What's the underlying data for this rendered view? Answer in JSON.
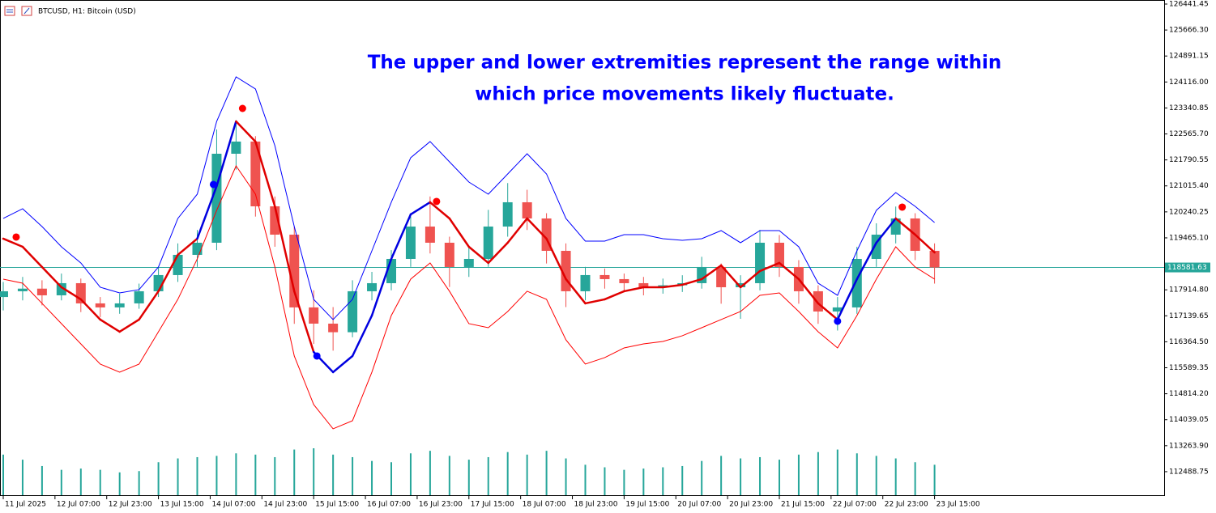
{
  "chart_data": {
    "type": "candlestick",
    "title": "BTCUSD, H1:  Bitcoin (USD)",
    "annotations": [
      "The upper and lower extremities represent the range within",
      "which price movements likely fluctuate."
    ],
    "x": [
      "11 Jul 15:00",
      "11 Jul 21:00",
      "12 Jul 03:00",
      "12 Jul 09:00",
      "12 Jul 15:00",
      "12 Jul 21:00",
      "13 Jul 03:00",
      "13 Jul 09:00",
      "13 Jul 15:00",
      "13 Jul 21:00",
      "14 Jul 03:00",
      "14 Jul 09:00",
      "14 Jul 15:00",
      "14 Jul 21:00",
      "15 Jul 03:00",
      "15 Jul 09:00",
      "15 Jul 15:00",
      "15 Jul 21:00",
      "16 Jul 03:00",
      "16 Jul 09:00",
      "16 Jul 15:00",
      "16 Jul 21:00",
      "17 Jul 03:00",
      "17 Jul 09:00",
      "17 Jul 15:00",
      "17 Jul 21:00",
      "18 Jul 03:00",
      "18 Jul 09:00",
      "18 Jul 15:00",
      "18 Jul 21:00",
      "19 Jul 03:00",
      "19 Jul 09:00",
      "19 Jul 15:00",
      "19 Jul 21:00",
      "20 Jul 03:00",
      "20 Jul 09:00",
      "20 Jul 15:00",
      "20 Jul 21:00",
      "21 Jul 03:00",
      "21 Jul 09:00",
      "21 Jul 15:00",
      "21 Jul 21:00",
      "22 Jul 03:00",
      "22 Jul 09:00",
      "22 Jul 15:00",
      "22 Jul 21:00",
      "23 Jul 03:00",
      "23 Jul 09:00",
      "23 Jul 15:00"
    ],
    "open": [
      117700,
      117872,
      117950,
      117751,
      118113,
      117510,
      117390,
      117510,
      117872,
      118355,
      118958,
      119320,
      121975,
      122338,
      120406,
      119561,
      117390,
      116906,
      116650,
      117872,
      118113,
      118837,
      119803,
      119320,
      118596,
      118837,
      119803,
      120527,
      120044,
      119078,
      117872,
      118355,
      118234,
      118113,
      117992,
      118050,
      118113,
      118596,
      117992,
      118113,
      119320,
      118596,
      117872,
      117268,
      117390,
      118837,
      119561,
      120044,
      119078
    ],
    "high": [
      118150,
      118300,
      118200,
      118400,
      118250,
      117700,
      117800,
      118100,
      118600,
      119300,
      119700,
      122700,
      122900,
      122500,
      120700,
      119800,
      117900,
      117400,
      118200,
      118450,
      119100,
      120100,
      120700,
      119500,
      119200,
      120300,
      121100,
      120900,
      120200,
      119300,
      118600,
      118550,
      118400,
      118300,
      118250,
      118350,
      118900,
      118700,
      118350,
      119700,
      119550,
      118800,
      118050,
      117700,
      119200,
      119900,
      120400,
      120200,
      119300
    ],
    "low": [
      117300,
      117600,
      117450,
      117600,
      117250,
      117100,
      117200,
      117350,
      117700,
      118150,
      118600,
      119100,
      121500,
      120100,
      119200,
      116900,
      116300,
      116100,
      116500,
      117600,
      117900,
      118600,
      119000,
      118000,
      118300,
      118600,
      119500,
      119700,
      118700,
      117400,
      117600,
      117950,
      117850,
      117750,
      117800,
      117850,
      117950,
      117500,
      117050,
      117900,
      118300,
      117500,
      116900,
      116700,
      117200,
      118600,
      119300,
      118800,
      118100
    ],
    "close": [
      117872,
      117950,
      117751,
      118113,
      117510,
      117390,
      117510,
      117872,
      118355,
      118958,
      119320,
      121975,
      122338,
      120406,
      119561,
      117390,
      116906,
      116650,
      117872,
      118113,
      118837,
      119803,
      119320,
      118596,
      118837,
      119803,
      120527,
      120044,
      119078,
      117872,
      118355,
      118234,
      118113,
      117992,
      118050,
      118113,
      118596,
      117992,
      118113,
      119320,
      118596,
      117872,
      117268,
      117390,
      118837,
      119561,
      120044,
      119078,
      118581.63
    ],
    "volume": [
      3200,
      2800,
      2300,
      2000,
      2100,
      2000,
      1800,
      1900,
      2600,
      2900,
      3000,
      3100,
      3300,
      3200,
      3000,
      3600,
      3700,
      3200,
      3000,
      2700,
      2600,
      3300,
      3500,
      3100,
      2800,
      3000,
      3400,
      3200,
      3500,
      2900,
      2400,
      2200,
      2000,
      2100,
      2200,
      2300,
      2700,
      3100,
      2900,
      3000,
      2800,
      3200,
      3400,
      3600,
      3300,
      3100,
      2900,
      2600,
      2400
    ],
    "up_color": "#26a69a",
    "down_color": "#ef5350",
    "volume_color": "#26a69a",
    "lines": [
      {
        "color": "#0000ff",
        "width": 1,
        "values": [
          120044,
          120334,
          119803,
          119199,
          118717,
          117992,
          117823,
          117920,
          118596,
          120044,
          120768,
          122941,
          124269,
          123907,
          122217,
          119803,
          117631,
          117027,
          117631,
          119078,
          120527,
          121855,
          122338,
          121734,
          121130,
          120768,
          121372,
          121975,
          121372,
          120044,
          119368,
          119368,
          119561,
          119561,
          119441,
          119392,
          119441,
          119682,
          119320,
          119682,
          119682,
          119199,
          118113,
          117751,
          119078,
          120286,
          120817,
          120406,
          119924
        ]
      },
      {
        "color": "#ff0000",
        "width": 1,
        "values": [
          118234,
          118113,
          117510,
          116906,
          116302,
          115699,
          115458,
          115699,
          116665,
          117631,
          118837,
          120286,
          121613,
          120768,
          118596,
          115940,
          114492,
          113768,
          114009,
          115458,
          117147,
          118234,
          118717,
          117872,
          116906,
          116785,
          117268,
          117872,
          117631,
          116423,
          115699,
          115892,
          116182,
          116302,
          116375,
          116544,
          116785,
          117027,
          117268,
          117751,
          117823,
          117268,
          116665,
          116182,
          117147,
          118234,
          119199,
          118596,
          118234
        ]
      },
      {
        "width": 2.5,
        "values": [
          119441,
          119199,
          118596,
          117992,
          117631,
          117027,
          116665,
          117027,
          117872,
          118958,
          119441,
          121010,
          122941,
          122338,
          120406,
          117872,
          116061,
          115458,
          115940,
          117147,
          118837,
          120165,
          120527,
          120044,
          119199,
          118717,
          119320,
          120044,
          119441,
          118234,
          117510,
          117631,
          117872,
          117992,
          117992,
          118065,
          118234,
          118644,
          117992,
          118475,
          118717,
          118234,
          117510,
          117027,
          118234,
          119320,
          120044,
          119561,
          119030
        ],
        "colors": [
          "#e00000",
          "#e00000",
          "#e00000",
          "#e00000",
          "#e00000",
          "#e00000",
          "#e00000",
          "#e00000",
          "#e00000",
          "#e00000",
          "#e00000",
          "#0000e0",
          "#0000e0",
          "#e00000",
          "#e00000",
          "#e00000",
          "#e00000",
          "#0000e0",
          "#0000e0",
          "#0000e0",
          "#0000e0",
          "#0000e0",
          "#0000e0",
          "#e00000",
          "#e00000",
          "#e00000",
          "#e00000",
          "#e00000",
          "#e00000",
          "#e00000",
          "#e00000",
          "#e00000",
          "#e00000",
          "#e00000",
          "#e00000",
          "#e00000",
          "#e00000",
          "#e00000",
          "#e00000",
          "#e00000",
          "#e00000",
          "#e00000",
          "#e00000",
          "#e00000",
          "#0000e0",
          "#0000e0",
          "#0000e0",
          "#e00000",
          "#e00000"
        ]
      }
    ],
    "signals": [
      {
        "x": "11 Jul 19:00",
        "value": 119489,
        "color": "#ff0000"
      },
      {
        "x": "14 Jul 08:00",
        "value": 121058,
        "color": "#0000ff"
      },
      {
        "x": "14 Jul 17:00",
        "value": 123327,
        "color": "#ff0000"
      },
      {
        "x": "15 Jul 16:00",
        "value": 115940,
        "color": "#0000ff"
      },
      {
        "x": "17 Jul 05:00",
        "value": 120551,
        "color": "#ff0000"
      },
      {
        "x": "22 Jul 09:00",
        "value": 116979,
        "color": "#0000ff"
      },
      {
        "x": "23 Jul 05:00",
        "value": 120382,
        "color": "#ff0000"
      }
    ],
    "last_price": {
      "value": 118581.63,
      "label": "118581.63"
    },
    "last_price_color": "#26a69a",
    "xlim": [
      "11 Jul 14:00",
      "26 Jul 14:00"
    ],
    "xticks": [
      {
        "value": "11 Jul 15:00",
        "label": "11 Jul 2025"
      },
      "12 Jul 07:00",
      "12 Jul 23:00",
      "13 Jul 15:00",
      "14 Jul 07:00",
      "14 Jul 23:00",
      "15 Jul 15:00",
      "16 Jul 07:00",
      "16 Jul 23:00",
      "17 Jul 15:00",
      "18 Jul 07:00",
      "18 Jul 23:00",
      "19 Jul 15:00",
      "20 Jul 07:00",
      "20 Jul 23:00",
      "21 Jul 15:00",
      "22 Jul 07:00",
      "22 Jul 23:00",
      "23 Jul 15:00"
    ],
    "ylim": [
      111763,
      126562
    ],
    "yticks": [
      126441.45,
      {
        "value": 125666.3,
        "label": "125666.30"
      },
      124891.15,
      {
        "value": 124116,
        "label": "124116.00"
      },
      123340.85,
      {
        "value": 122565.7,
        "label": "122565.70"
      },
      121790.55,
      {
        "value": 121015.4,
        "label": "121015.40"
      },
      120240.25,
      {
        "value": 119465.1,
        "label": "119465.10"
      },
      {
        "value": 117914.8,
        "label": "117914.80"
      },
      117139.65,
      {
        "value": 116364.5,
        "label": "116364.50"
      },
      115589.35,
      {
        "value": 114814.2,
        "label": "114814.20"
      },
      114039.05,
      {
        "value": 113263.9,
        "label": "113263.90"
      },
      112488.75
    ]
  }
}
